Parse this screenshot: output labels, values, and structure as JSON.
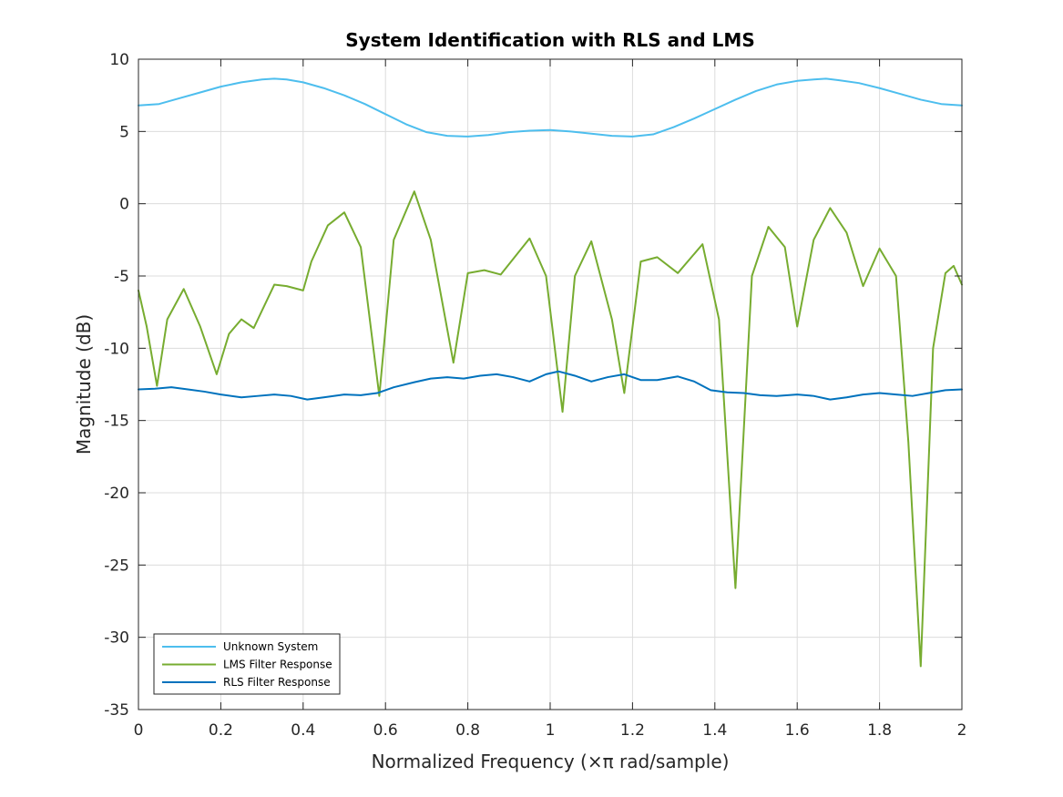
{
  "chart_data": {
    "type": "line",
    "title": "System Identification with RLS and LMS",
    "xlabel": "Normalized Frequency (×π rad/sample)",
    "ylabel": "Magnitude (dB)",
    "xlim": [
      0,
      2
    ],
    "ylim": [
      -35,
      10
    ],
    "xticks": [
      0,
      0.2,
      0.4,
      0.6,
      0.8,
      1,
      1.2,
      1.4,
      1.6,
      1.8,
      2
    ],
    "xtick_labels": [
      "0",
      "0.2",
      "0.4",
      "0.6",
      "0.8",
      "1",
      "1.2",
      "1.4",
      "1.6",
      "1.8",
      "2"
    ],
    "yticks": [
      -35,
      -30,
      -25,
      -20,
      -15,
      -10,
      -5,
      0,
      5,
      10
    ],
    "ytick_labels": [
      "-35",
      "-30",
      "-25",
      "-20",
      "-15",
      "-10",
      "-5",
      "0",
      "5",
      "10"
    ],
    "grid": true,
    "legend_position": "bottom-left",
    "series": [
      {
        "name": "Unknown System",
        "color": "#4DBEEE",
        "x": [
          0,
          0.05,
          0.1,
          0.15,
          0.2,
          0.25,
          0.3,
          0.33,
          0.36,
          0.4,
          0.45,
          0.5,
          0.55,
          0.6,
          0.65,
          0.7,
          0.75,
          0.8,
          0.85,
          0.9,
          0.95,
          1.0,
          1.05,
          1.1,
          1.15,
          1.2,
          1.25,
          1.3,
          1.35,
          1.4,
          1.45,
          1.5,
          1.55,
          1.6,
          1.64,
          1.67,
          1.7,
          1.75,
          1.8,
          1.85,
          1.9,
          1.95,
          2.0
        ],
        "y": [
          6.8,
          6.9,
          7.3,
          7.7,
          8.1,
          8.4,
          8.6,
          8.65,
          8.6,
          8.4,
          8.0,
          7.5,
          6.9,
          6.2,
          5.5,
          4.95,
          4.7,
          4.65,
          4.75,
          4.95,
          5.05,
          5.1,
          5.0,
          4.85,
          4.7,
          4.65,
          4.8,
          5.3,
          5.9,
          6.55,
          7.2,
          7.8,
          8.25,
          8.5,
          8.6,
          8.65,
          8.55,
          8.35,
          8.0,
          7.6,
          7.2,
          6.9,
          6.8
        ]
      },
      {
        "name": "LMS Filter Response",
        "color": "#77AC30",
        "x": [
          0,
          0.02,
          0.045,
          0.07,
          0.11,
          0.15,
          0.19,
          0.22,
          0.25,
          0.28,
          0.3,
          0.33,
          0.36,
          0.4,
          0.42,
          0.46,
          0.5,
          0.54,
          0.585,
          0.62,
          0.67,
          0.71,
          0.765,
          0.8,
          0.84,
          0.88,
          0.95,
          0.99,
          1.03,
          1.06,
          1.1,
          1.15,
          1.18,
          1.22,
          1.26,
          1.31,
          1.37,
          1.41,
          1.45,
          1.49,
          1.53,
          1.57,
          1.6,
          1.64,
          1.68,
          1.72,
          1.76,
          1.8,
          1.84,
          1.87,
          1.9,
          1.93,
          1.96,
          1.98,
          2.0
        ],
        "y": [
          -6.0,
          -8.5,
          -12.6,
          -8.0,
          -5.9,
          -8.5,
          -11.8,
          -9.0,
          -8.0,
          -8.6,
          -7.4,
          -5.6,
          -5.7,
          -6.0,
          -4.0,
          -1.5,
          -0.6,
          -3.0,
          -13.3,
          -2.5,
          0.85,
          -2.5,
          -11.0,
          -4.8,
          -4.6,
          -4.9,
          -2.4,
          -5.0,
          -14.4,
          -5.0,
          -2.6,
          -8.0,
          -13.1,
          -4.0,
          -3.7,
          -4.8,
          -2.8,
          -8.0,
          -26.6,
          -5.0,
          -1.6,
          -3.0,
          -8.5,
          -2.5,
          -0.3,
          -2.0,
          -5.7,
          -3.1,
          -5.0,
          -16.5,
          -32.0,
          -10.0,
          -4.8,
          -4.3,
          -5.6
        ]
      },
      {
        "name": "RLS Filter Response",
        "color": "#0072BD",
        "x": [
          0,
          0.04,
          0.08,
          0.12,
          0.16,
          0.2,
          0.25,
          0.29,
          0.33,
          0.37,
          0.41,
          0.45,
          0.5,
          0.54,
          0.58,
          0.62,
          0.67,
          0.71,
          0.75,
          0.79,
          0.83,
          0.87,
          0.91,
          0.95,
          0.99,
          1.02,
          1.06,
          1.1,
          1.14,
          1.18,
          1.22,
          1.26,
          1.31,
          1.35,
          1.39,
          1.43,
          1.47,
          1.51,
          1.55,
          1.6,
          1.64,
          1.68,
          1.72,
          1.76,
          1.8,
          1.84,
          1.88,
          1.92,
          1.96,
          2.0
        ],
        "y": [
          -12.85,
          -12.8,
          -12.7,
          -12.85,
          -13.0,
          -13.2,
          -13.4,
          -13.3,
          -13.2,
          -13.3,
          -13.55,
          -13.4,
          -13.2,
          -13.25,
          -13.1,
          -12.7,
          -12.35,
          -12.1,
          -12.0,
          -12.1,
          -11.9,
          -11.8,
          -12.0,
          -12.3,
          -11.8,
          -11.6,
          -11.9,
          -12.3,
          -12.0,
          -11.8,
          -12.2,
          -12.2,
          -11.95,
          -12.3,
          -12.9,
          -13.05,
          -13.1,
          -13.25,
          -13.3,
          -13.2,
          -13.3,
          -13.55,
          -13.4,
          -13.2,
          -13.1,
          -13.2,
          -13.3,
          -13.1,
          -12.9,
          -12.85
        ]
      }
    ]
  }
}
